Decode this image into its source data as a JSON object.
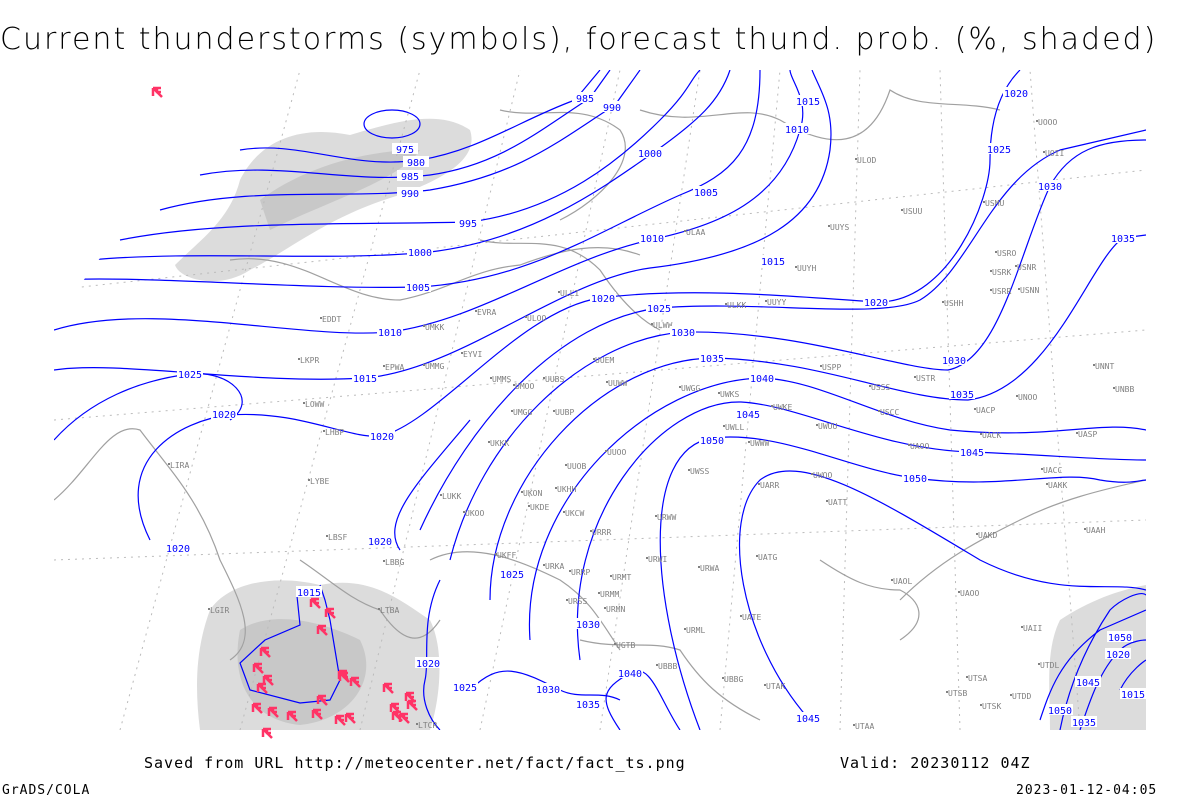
{
  "title": "Current thunderstorms (symbols), forecast thund. prob. (%, shaded)",
  "footer": {
    "saved_from": "Saved from URL http://meteocenter.net/fact/fact_ts.png",
    "valid": "Valid: 20230112 04Z",
    "software": "GrADS/COLA",
    "timestamp": "2023-01-12-04:05"
  },
  "colors": {
    "isobar": "#0000ff",
    "coastline": "#a0a0a0",
    "shading": "#d8d8d8",
    "thunderstorm_symbol": "#ff3366",
    "station_label": "#808080"
  },
  "icons": {
    "thunderstorm": "thunderstorm-symbol-icon"
  },
  "isobar_labels": [
    "985",
    "990",
    "975",
    "980",
    "985",
    "990",
    "995",
    "1000",
    "1005",
    "1010",
    "1015",
    "1020",
    "1025",
    "1020",
    "1000",
    "1005",
    "1010",
    "1015",
    "1020",
    "1025",
    "1030",
    "1035",
    "1040",
    "1045",
    "1050",
    "1015",
    "1010",
    "1020",
    "1025",
    "1030",
    "1035",
    "1020",
    "1030",
    "1035",
    "1045",
    "1050",
    "1020",
    "1025",
    "1030",
    "1020",
    "1025",
    "1030",
    "1035",
    "1045",
    "1040",
    "1015",
    "1020",
    "1050",
    "1045",
    "1020",
    "1015",
    "1050",
    "1035"
  ],
  "stations": [
    "ULAA",
    "ULOD",
    "UUYS",
    "UUYH",
    "ULLI",
    "ULKK",
    "UUYY",
    "EVRA",
    "ULOO",
    "UMKK",
    "EPWA",
    "UMMG",
    "EYVI",
    "UMMS",
    "UMOO",
    "UUBS",
    "UUEM",
    "UUWW",
    "ULWW",
    "UWGG",
    "UWKS",
    "UWKE",
    "UWLL",
    "UWWW",
    "UWUU",
    "USCC",
    "USSS",
    "USPP",
    "USTR",
    "UACP",
    "UNOO",
    "UACK",
    "UAOO",
    "UASP",
    "UNBB",
    "UNNT",
    "UAKK",
    "UACC",
    "UATT",
    "UARR",
    "UWOO",
    "UWSS",
    "URWA",
    "URWW",
    "URWI",
    "UUOO",
    "UUOB",
    "UUBP",
    "UMGG",
    "UKKK",
    "UKHH",
    "UKON",
    "UKOO",
    "UKDE",
    "UKCW",
    "URRR",
    "URRP",
    "URKA",
    "UKFF",
    "UATG",
    "UATE",
    "UAOL",
    "UAOO",
    "LUKK",
    "LYBE",
    "LBSF",
    "LBBG",
    "LIRA",
    "LHBP",
    "LOWW",
    "LKPR",
    "EDDT",
    "USRR",
    "USRK",
    "USRO",
    "USNR",
    "USNN",
    "USHH",
    "USUU",
    "USMU",
    "UOOO",
    "UOII",
    "UAAH",
    "UAKD",
    "URSS",
    "URMM",
    "URMT",
    "URMN",
    "URML",
    "UGTB",
    "UBBB",
    "UTAK",
    "UBBG",
    "UTAA",
    "UTSA",
    "UTSB",
    "UTSK",
    "UTDD",
    "UAII",
    "UTDL",
    "LGIR",
    "LTBA",
    "LTCR"
  ],
  "thunderstorm_count": 25
}
